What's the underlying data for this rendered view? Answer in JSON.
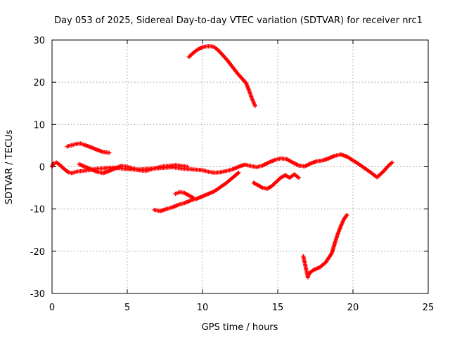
{
  "chart_data": {
    "type": "scatter",
    "title": "Day 053 of 2025, Sidereal Day-to-day VTEC variation (SDTVAR) for receiver nrc1",
    "xlabel": "GPS time / hours",
    "ylabel": "SDTVAR / TECUs",
    "xlim": [
      0,
      25
    ],
    "ylim": [
      -30,
      30
    ],
    "x_ticks": [
      0,
      5,
      10,
      15,
      20,
      25
    ],
    "x_tick_labels": [
      "0",
      "5",
      "10",
      "15",
      "20",
      "25"
    ],
    "y_ticks": [
      -30,
      -20,
      -10,
      0,
      10,
      20,
      30
    ],
    "y_tick_labels": [
      "-30",
      "-20",
      "-10",
      "0",
      "10",
      "20",
      "30"
    ],
    "grid": true,
    "marker": "+",
    "color": "#ff0000",
    "series": [
      {
        "name": "main-trace",
        "x": [
          0.0,
          0.1,
          0.3,
          0.5,
          0.7,
          0.9,
          1.1,
          1.3,
          1.6,
          2.0,
          2.4,
          2.8,
          3.2,
          3.6,
          4.0,
          4.4,
          4.8,
          5.2,
          5.6,
          6.0,
          6.4,
          6.8,
          7.2,
          7.6,
          8.0,
          8.4,
          8.8,
          9.2,
          9.6,
          10.0,
          10.4,
          10.8,
          11.2,
          11.6,
          12.0,
          12.4,
          12.8,
          13.2,
          13.6,
          14.0,
          14.4,
          14.8,
          15.2,
          15.6,
          16.0,
          16.4,
          16.8,
          17.2,
          17.6,
          18.0,
          18.4,
          18.8,
          19.2,
          19.6,
          20.0,
          20.4,
          20.8,
          21.2,
          21.6,
          22.0,
          22.4,
          22.6
        ],
        "y": [
          0.0,
          0.8,
          1.0,
          0.5,
          -0.2,
          -0.8,
          -1.3,
          -1.5,
          -1.2,
          -1.0,
          -0.8,
          -0.6,
          -0.4,
          -0.3,
          -0.2,
          -0.3,
          -0.5,
          -0.6,
          -0.7,
          -0.6,
          -0.5,
          -0.4,
          -0.3,
          -0.2,
          -0.1,
          -0.3,
          -0.5,
          -0.6,
          -0.7,
          -0.8,
          -1.2,
          -1.4,
          -1.3,
          -1.0,
          -0.6,
          0.0,
          0.5,
          0.2,
          -0.1,
          0.3,
          1.0,
          1.6,
          2.0,
          1.8,
          1.0,
          0.3,
          0.1,
          0.8,
          1.3,
          1.5,
          2.0,
          2.6,
          2.9,
          2.4,
          1.5,
          0.6,
          -0.4,
          -1.4,
          -2.5,
          -1.2,
          0.4,
          1.0
        ]
      },
      {
        "name": "secondary-trace",
        "x": [
          1.8,
          2.2,
          2.6,
          3.0,
          3.4,
          3.8,
          4.2,
          4.6,
          5.0,
          5.4,
          5.8,
          6.2,
          6.6,
          7.0,
          7.4,
          7.8,
          8.2,
          8.6,
          9.0
        ],
        "y": [
          0.6,
          0.0,
          -0.6,
          -1.2,
          -1.5,
          -1.0,
          -0.4,
          0.2,
          0.0,
          -0.4,
          -0.8,
          -1.0,
          -0.6,
          -0.2,
          0.1,
          0.2,
          0.4,
          0.2,
          0.0
        ]
      },
      {
        "name": "upper-left-arc",
        "x": [
          1.0,
          1.3,
          1.6,
          1.9,
          2.2,
          2.6,
          3.0,
          3.4,
          3.8
        ],
        "y": [
          4.8,
          5.1,
          5.4,
          5.5,
          5.1,
          4.6,
          4.0,
          3.5,
          3.3
        ]
      },
      {
        "name": "upper-arc",
        "x": [
          9.1,
          9.4,
          9.7,
          10.0,
          10.3,
          10.6,
          10.8,
          11.1,
          11.4,
          11.7,
          12.0,
          12.3,
          12.6,
          12.9,
          13.1,
          13.3,
          13.5
        ],
        "y": [
          26.0,
          27.0,
          27.8,
          28.3,
          28.5,
          28.5,
          28.3,
          27.4,
          26.2,
          25.0,
          23.6,
          22.2,
          21.0,
          19.8,
          18.0,
          16.0,
          14.4
        ]
      },
      {
        "name": "rising-trace",
        "x": [
          6.8,
          7.2,
          7.6,
          8.0,
          8.4,
          8.8,
          9.2,
          9.6,
          10.0,
          10.4,
          10.8,
          11.2,
          11.6,
          12.0,
          12.4
        ],
        "y": [
          -10.2,
          -10.5,
          -10.0,
          -9.6,
          -9.0,
          -8.6,
          -8.0,
          -7.6,
          -7.0,
          -6.4,
          -5.8,
          -4.8,
          -3.8,
          -2.6,
          -1.4
        ]
      },
      {
        "name": "short-dip",
        "x": [
          8.2,
          8.5,
          8.8,
          9.1,
          9.4
        ],
        "y": [
          -6.4,
          -6.0,
          -6.2,
          -6.8,
          -7.4
        ]
      },
      {
        "name": "mid-dip-trace",
        "x": [
          13.4,
          13.7,
          14.0,
          14.3,
          14.6,
          14.9,
          15.2,
          15.5,
          15.8,
          16.1,
          16.4
        ],
        "y": [
          -3.8,
          -4.4,
          -5.0,
          -5.2,
          -4.6,
          -3.6,
          -2.6,
          -2.0,
          -2.6,
          -1.8,
          -2.6
        ]
      },
      {
        "name": "lower-rising-trace",
        "x": [
          16.7,
          16.8,
          16.9,
          17.0,
          17.1,
          17.4,
          17.8,
          18.2,
          18.6,
          18.8,
          19.0,
          19.2,
          19.4,
          19.6
        ],
        "y": [
          -21.2,
          -22.8,
          -24.5,
          -26.2,
          -25.2,
          -24.4,
          -23.8,
          -22.6,
          -20.4,
          -18.0,
          -15.8,
          -14.0,
          -12.4,
          -11.4
        ]
      }
    ]
  }
}
